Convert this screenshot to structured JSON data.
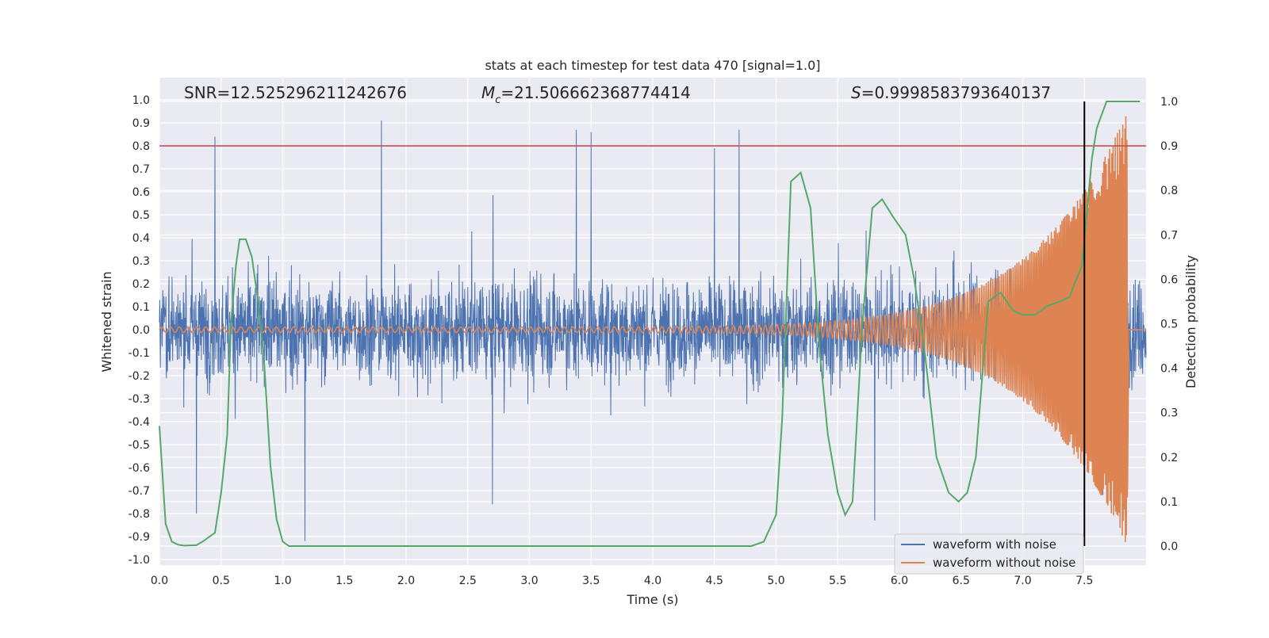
{
  "colors": {
    "background": "#ffffff",
    "plot_background": "#eaeaf2",
    "grid": "#ffffff",
    "noise": "#4c72b0",
    "clean": "#dd8452",
    "probability": "#55a868",
    "threshold": "#c44e52",
    "marker": "#000000",
    "text": "#262626"
  },
  "chart_data": {
    "type": "line",
    "title": "stats at each timestep for test data 470 [signal=1.0]",
    "xlabel": "Time (s)",
    "ylabel": "Whitened strain",
    "y2label": "Detection probability",
    "xlim": [
      0.0,
      8.0
    ],
    "ylim": [
      -1.05,
      1.05
    ],
    "y2lim": [
      -0.05,
      1.05
    ],
    "xticks": [
      "0.0",
      "0.5",
      "1.0",
      "1.5",
      "2.0",
      "2.5",
      "3.0",
      "3.5",
      "4.0",
      "4.5",
      "5.0",
      "5.5",
      "6.0",
      "6.5",
      "7.0",
      "7.5"
    ],
    "yticks": [
      "1.0",
      "0.9",
      "0.8",
      "0.7",
      "0.6",
      "0.5",
      "0.4",
      "0.3",
      "0.2",
      "0.1",
      "0.0",
      "-0.1",
      "-0.2",
      "-0.3",
      "-0.4",
      "-0.5",
      "-0.6",
      "-0.7",
      "-0.8",
      "-0.9",
      "-1.0"
    ],
    "y2ticks": [
      "1.0",
      "0.9",
      "0.8",
      "0.7",
      "0.6",
      "0.5",
      "0.4",
      "0.3",
      "0.2",
      "0.1",
      "0.0"
    ],
    "annotations": {
      "snr_prefix": "SNR=",
      "snr_value": "12.525296211242676",
      "mc_symbol": "M",
      "mc_subscript": "c",
      "mc_value": "=21.506662368774414",
      "s_symbol": "S",
      "s_value": "=0.9998583793640137"
    },
    "threshold_probability": 0.9,
    "marker_time": 7.5,
    "legend": {
      "placement": "bottom-right",
      "entries": [
        "waveform with noise",
        "waveform without noise"
      ]
    },
    "series": [
      {
        "name": "waveform with noise",
        "kind": "noisy strain",
        "t_start": 0.0,
        "t_end": 8.0,
        "typical_envelope": 0.33,
        "peaks": [
          [
            0.45,
            0.84
          ],
          [
            1.8,
            0.91
          ],
          [
            3.38,
            0.87
          ],
          [
            3.5,
            0.86
          ],
          [
            4.7,
            0.87
          ],
          [
            4.5,
            0.79
          ],
          [
            1.18,
            -0.92
          ],
          [
            0.3,
            -0.8
          ],
          [
            2.7,
            -0.76
          ],
          [
            5.8,
            -0.83
          ],
          [
            7.5,
            -0.7
          ],
          [
            7.65,
            -0.72
          ]
        ]
      },
      {
        "name": "waveform without noise",
        "kind": "chirp",
        "t_start": 0.0,
        "t_merge": 7.85,
        "f_start": 14,
        "f_end": 120,
        "a_start": 0.012,
        "a_end": 0.95
      },
      {
        "name": "detection probability",
        "axis": "right",
        "points": [
          [
            0.0,
            0.27
          ],
          [
            0.05,
            0.05
          ],
          [
            0.1,
            0.01
          ],
          [
            0.15,
            0.003
          ],
          [
            0.2,
            0.001
          ],
          [
            0.3,
            0.002
          ],
          [
            0.35,
            0.01
          ],
          [
            0.45,
            0.03
          ],
          [
            0.5,
            0.12
          ],
          [
            0.55,
            0.25
          ],
          [
            0.58,
            0.5
          ],
          [
            0.62,
            0.63
          ],
          [
            0.65,
            0.69
          ],
          [
            0.7,
            0.69
          ],
          [
            0.75,
            0.65
          ],
          [
            0.8,
            0.55
          ],
          [
            0.85,
            0.41
          ],
          [
            0.9,
            0.18
          ],
          [
            0.95,
            0.06
          ],
          [
            1.0,
            0.01
          ],
          [
            1.05,
            0.0
          ],
          [
            2.0,
            0.0
          ],
          [
            3.0,
            0.0
          ],
          [
            4.0,
            0.0
          ],
          [
            4.8,
            0.0
          ],
          [
            4.9,
            0.01
          ],
          [
            5.0,
            0.07
          ],
          [
            5.05,
            0.29
          ],
          [
            5.12,
            0.82
          ],
          [
            5.2,
            0.84
          ],
          [
            5.28,
            0.76
          ],
          [
            5.35,
            0.45
          ],
          [
            5.42,
            0.25
          ],
          [
            5.5,
            0.12
          ],
          [
            5.56,
            0.07
          ],
          [
            5.62,
            0.1
          ],
          [
            5.7,
            0.5
          ],
          [
            5.78,
            0.76
          ],
          [
            5.86,
            0.78
          ],
          [
            5.95,
            0.74
          ],
          [
            6.05,
            0.7
          ],
          [
            6.12,
            0.6
          ],
          [
            6.2,
            0.45
          ],
          [
            6.3,
            0.2
          ],
          [
            6.4,
            0.12
          ],
          [
            6.48,
            0.1
          ],
          [
            6.55,
            0.12
          ],
          [
            6.62,
            0.2
          ],
          [
            6.72,
            0.55
          ],
          [
            6.82,
            0.57
          ],
          [
            6.92,
            0.53
          ],
          [
            7.0,
            0.52
          ],
          [
            7.1,
            0.52
          ],
          [
            7.2,
            0.54
          ],
          [
            7.3,
            0.55
          ],
          [
            7.38,
            0.56
          ],
          [
            7.42,
            0.59
          ],
          [
            7.48,
            0.63
          ],
          [
            7.52,
            0.75
          ],
          [
            7.56,
            0.87
          ],
          [
            7.6,
            0.94
          ],
          [
            7.68,
            1.0
          ],
          [
            7.75,
            1.0
          ],
          [
            7.85,
            1.0
          ],
          [
            7.95,
            1.0
          ]
        ]
      }
    ]
  }
}
